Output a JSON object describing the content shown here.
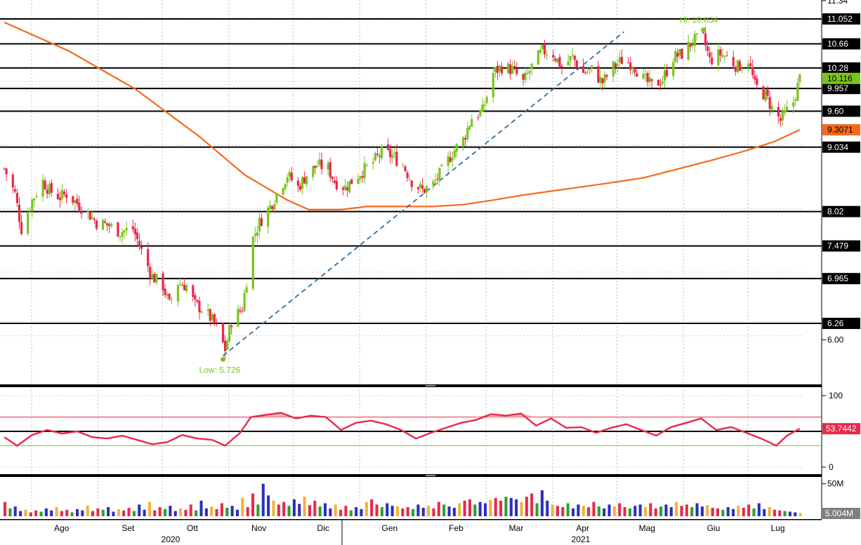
{
  "chart_data": [
    {
      "type": "candlestick",
      "panel": "price",
      "ylim": [
        5.3,
        11.35
      ],
      "y_ticks": [
        {
          "value": 6.0,
          "label": "6.00"
        },
        {
          "value": 11.34,
          "label": "11.34"
        }
      ],
      "horizontal_levels": [
        {
          "value": 11.052,
          "label": "11.052"
        },
        {
          "value": 10.66,
          "label": "10.66"
        },
        {
          "value": 10.28,
          "label": "10.28"
        },
        {
          "value": 9.957,
          "label": "9.957"
        },
        {
          "value": 9.6,
          "label": "9.60"
        },
        {
          "value": 9.034,
          "label": "9.034"
        },
        {
          "value": 8.02,
          "label": "8.02"
        },
        {
          "value": 7.479,
          "label": "7.479"
        },
        {
          "value": 6.965,
          "label": "6.965"
        },
        {
          "value": 6.26,
          "label": "6.26"
        }
      ],
      "last_price": {
        "value": 10.116,
        "label": "10.116",
        "color": "#7ac41e"
      },
      "moving_average_label": {
        "value": 9.3071,
        "label": "9.3071",
        "color": "#f26a1b"
      },
      "annotations": {
        "high": {
          "label": "Hi: 10.834",
          "value": 10.834
        },
        "low": {
          "label": "Low: 5.726",
          "value": 5.726
        }
      },
      "moving_average": {
        "color": "#f26a1b",
        "points": [
          [
            "2020-07-16",
            11.0
          ],
          [
            "2020-08-15",
            10.55
          ],
          [
            "2020-09-15",
            9.95
          ],
          [
            "2020-10-15",
            9.2
          ],
          [
            "2020-11-05",
            8.6
          ],
          [
            "2020-11-25",
            8.2
          ],
          [
            "2020-12-05",
            8.05
          ],
          [
            "2020-12-20",
            8.05
          ],
          [
            "2021-01-01",
            8.1
          ],
          [
            "2021-01-15",
            8.1
          ],
          [
            "2021-02-01",
            8.1
          ],
          [
            "2021-02-15",
            8.13
          ],
          [
            "2021-03-01",
            8.2
          ],
          [
            "2021-03-15",
            8.28
          ],
          [
            "2021-04-01",
            8.36
          ],
          [
            "2021-04-20",
            8.45
          ],
          [
            "2021-05-10",
            8.55
          ],
          [
            "2021-05-25",
            8.68
          ],
          [
            "2021-06-10",
            8.82
          ],
          [
            "2021-06-25",
            8.96
          ],
          [
            "2021-07-10",
            9.12
          ],
          [
            "2021-07-22",
            9.3071
          ]
        ]
      },
      "trendline": {
        "color": "#2b6e9e",
        "from": [
          "2020-10-26",
          5.75
        ],
        "to": [
          "2021-05-01",
          10.85
        ]
      },
      "series": [
        {
          "type": "ohlc",
          "close_path": [
            [
              "2020-07-16",
              8.7
            ],
            [
              "2020-07-21",
              8.3
            ],
            [
              "2020-07-24",
              7.75
            ],
            [
              "2020-07-29",
              8.2
            ],
            [
              "2020-08-03",
              8.5
            ],
            [
              "2020-08-06",
              8.35
            ],
            [
              "2020-08-11",
              8.25
            ],
            [
              "2020-08-14",
              8.3
            ],
            [
              "2020-08-19",
              8.15
            ],
            [
              "2020-08-24",
              8.0
            ],
            [
              "2020-08-28",
              7.85
            ],
            [
              "2020-09-03",
              7.8
            ],
            [
              "2020-09-08",
              7.7
            ],
            [
              "2020-09-14",
              7.75
            ],
            [
              "2020-09-18",
              7.4
            ],
            [
              "2020-09-23",
              7.0
            ],
            [
              "2020-09-28",
              6.85
            ],
            [
              "2020-10-01",
              6.55
            ],
            [
              "2020-10-05",
              6.9
            ],
            [
              "2020-10-09",
              6.85
            ],
            [
              "2020-10-13",
              6.55
            ],
            [
              "2020-10-16",
              6.5
            ],
            [
              "2020-10-20",
              6.35
            ],
            [
              "2020-10-23",
              6.2
            ],
            [
              "2020-10-27",
              5.85
            ],
            [
              "2020-10-30",
              6.3
            ],
            [
              "2020-11-04",
              6.5
            ],
            [
              "2020-11-09",
              7.6
            ],
            [
              "2020-11-12",
              7.85
            ],
            [
              "2020-11-17",
              8.1
            ],
            [
              "2020-11-20",
              8.3
            ],
            [
              "2020-11-25",
              8.6
            ],
            [
              "2020-11-30",
              8.4
            ],
            [
              "2020-12-04",
              8.6
            ],
            [
              "2020-12-09",
              8.75
            ],
            [
              "2020-12-14",
              8.7
            ],
            [
              "2020-12-17",
              8.5
            ],
            [
              "2020-12-22",
              8.4
            ],
            [
              "2020-12-28",
              8.6
            ],
            [
              "2021-01-04",
              8.8
            ],
            [
              "2021-01-08",
              8.95
            ],
            [
              "2021-01-13",
              8.9
            ],
            [
              "2021-01-18",
              8.75
            ],
            [
              "2021-01-22",
              8.5
            ],
            [
              "2021-01-27",
              8.35
            ],
            [
              "2021-02-01",
              8.45
            ],
            [
              "2021-02-05",
              8.65
            ],
            [
              "2021-02-10",
              8.95
            ],
            [
              "2021-02-15",
              9.15
            ],
            [
              "2021-02-19",
              9.5
            ],
            [
              "2021-02-24",
              9.6
            ],
            [
              "2021-03-01",
              10.2
            ],
            [
              "2021-03-05",
              10.3
            ],
            [
              "2021-03-10",
              10.25
            ],
            [
              "2021-03-15",
              10.05
            ],
            [
              "2021-03-19",
              10.3
            ],
            [
              "2021-03-24",
              10.55
            ],
            [
              "2021-03-29",
              10.5
            ],
            [
              "2021-04-02",
              10.3
            ],
            [
              "2021-04-07",
              10.45
            ],
            [
              "2021-04-12",
              10.2
            ],
            [
              "2021-04-16",
              10.25
            ],
            [
              "2021-04-21",
              10.05
            ],
            [
              "2021-04-26",
              10.3
            ],
            [
              "2021-04-30",
              10.4
            ],
            [
              "2021-05-05",
              10.35
            ],
            [
              "2021-05-10",
              10.1
            ],
            [
              "2021-05-14",
              10.0
            ],
            [
              "2021-05-19",
              10.1
            ],
            [
              "2021-05-24",
              10.45
            ],
            [
              "2021-05-28",
              10.5
            ],
            [
              "2021-06-02",
              10.7
            ],
            [
              "2021-06-07",
              10.75
            ],
            [
              "2021-06-10",
              10.4
            ],
            [
              "2021-06-15",
              10.5
            ],
            [
              "2021-06-18",
              10.45
            ],
            [
              "2021-06-23",
              10.3
            ],
            [
              "2021-06-28",
              10.4
            ],
            [
              "2021-07-01",
              10.0
            ],
            [
              "2021-07-06",
              9.85
            ],
            [
              "2021-07-09",
              9.65
            ],
            [
              "2021-07-13",
              9.45
            ],
            [
              "2021-07-15",
              9.55
            ],
            [
              "2021-07-19",
              9.75
            ],
            [
              "2021-07-22",
              10.116
            ]
          ]
        }
      ]
    },
    {
      "type": "line",
      "panel": "oscillator",
      "ylim": [
        0,
        100
      ],
      "y_ticks": [
        {
          "value": 100,
          "label": "100"
        },
        {
          "value": 0,
          "label": "0"
        }
      ],
      "bands": {
        "upper": 70,
        "lower": 30
      },
      "reference_level": 50,
      "last_value": {
        "value": 53.7442,
        "label": "53.7442"
      },
      "series": [
        {
          "color": "#e8294a",
          "points": [
            [
              "2020-07-16",
              42
            ],
            [
              "2020-07-22",
              30
            ],
            [
              "2020-07-29",
              45
            ],
            [
              "2020-08-05",
              52
            ],
            [
              "2020-08-12",
              47
            ],
            [
              "2020-08-19",
              50
            ],
            [
              "2020-08-26",
              42
            ],
            [
              "2020-09-02",
              40
            ],
            [
              "2020-09-09",
              44
            ],
            [
              "2020-09-16",
              38
            ],
            [
              "2020-09-23",
              32
            ],
            [
              "2020-09-30",
              35
            ],
            [
              "2020-10-07",
              45
            ],
            [
              "2020-10-14",
              40
            ],
            [
              "2020-10-21",
              38
            ],
            [
              "2020-10-27",
              30
            ],
            [
              "2020-11-03",
              48
            ],
            [
              "2020-11-08",
              70
            ],
            [
              "2020-11-15",
              73
            ],
            [
              "2020-11-22",
              76
            ],
            [
              "2020-11-29",
              68
            ],
            [
              "2020-12-06",
              72
            ],
            [
              "2020-12-13",
              70
            ],
            [
              "2020-12-20",
              52
            ],
            [
              "2020-12-27",
              62
            ],
            [
              "2021-01-03",
              65
            ],
            [
              "2021-01-10",
              60
            ],
            [
              "2021-01-17",
              52
            ],
            [
              "2021-01-24",
              40
            ],
            [
              "2021-01-31",
              48
            ],
            [
              "2021-02-07",
              55
            ],
            [
              "2021-02-14",
              62
            ],
            [
              "2021-02-21",
              66
            ],
            [
              "2021-02-28",
              74
            ],
            [
              "2021-03-07",
              72
            ],
            [
              "2021-03-14",
              75
            ],
            [
              "2021-03-21",
              58
            ],
            [
              "2021-03-28",
              68
            ],
            [
              "2021-04-04",
              55
            ],
            [
              "2021-04-11",
              56
            ],
            [
              "2021-04-18",
              48
            ],
            [
              "2021-04-25",
              55
            ],
            [
              "2021-05-02",
              60
            ],
            [
              "2021-05-09",
              52
            ],
            [
              "2021-05-16",
              44
            ],
            [
              "2021-05-23",
              56
            ],
            [
              "2021-05-30",
              62
            ],
            [
              "2021-06-06",
              68
            ],
            [
              "2021-06-13",
              52
            ],
            [
              "2021-06-20",
              56
            ],
            [
              "2021-06-27",
              48
            ],
            [
              "2021-07-04",
              40
            ],
            [
              "2021-07-11",
              30
            ],
            [
              "2021-07-16",
              44
            ],
            [
              "2021-07-22",
              53.7442
            ]
          ]
        }
      ]
    },
    {
      "type": "bar",
      "panel": "volume",
      "ylim": [
        0,
        55
      ],
      "unit": "M",
      "y_ticks": [
        {
          "value": 50,
          "label": "50M"
        }
      ],
      "last_value": {
        "value": 5.004,
        "label": "5.004M"
      },
      "bar_colors": [
        "#e8294a",
        "#f2b234",
        "#2a2fbf",
        "#2aa12a"
      ],
      "values": [
        22,
        12,
        15,
        8,
        10,
        6,
        9,
        7,
        12,
        9,
        14,
        8,
        10,
        6,
        11,
        9,
        16,
        8,
        12,
        10,
        14,
        7,
        11,
        9,
        13,
        8,
        18,
        10,
        22,
        9,
        14,
        11,
        16,
        8,
        12,
        10,
        18,
        9,
        24,
        12,
        15,
        11,
        20,
        13,
        16,
        10,
        28,
        14,
        35,
        18,
        50,
        32,
        24,
        18,
        22,
        16,
        26,
        19,
        30,
        17,
        24,
        15,
        20,
        12,
        18,
        10,
        16,
        9,
        14,
        11,
        22,
        26,
        18,
        14,
        20,
        16,
        15,
        12,
        14,
        11,
        18,
        13,
        16,
        12,
        22,
        18,
        15,
        13,
        20,
        24,
        26,
        18,
        22,
        20,
        25,
        28,
        24,
        30,
        28,
        26,
        22,
        30,
        35,
        20,
        40,
        24,
        18,
        16,
        14,
        20,
        12,
        18,
        16,
        14,
        22,
        15,
        12,
        18,
        15,
        20,
        14,
        12,
        16,
        18,
        14,
        20,
        12,
        15,
        18,
        14,
        22,
        16,
        18,
        14,
        20,
        15,
        17,
        13,
        12,
        10,
        14,
        11,
        16,
        13,
        18,
        12,
        20,
        11,
        14,
        10,
        9,
        8,
        7,
        6,
        5
      ]
    }
  ],
  "x_axis": {
    "months": [
      "Ago",
      "Set",
      "Ott",
      "Nov",
      "Dic",
      "Gen",
      "Feb",
      "Mar",
      "Apr",
      "Mag",
      "Giu",
      "Lug"
    ],
    "years": [
      "2020",
      "2021"
    ]
  }
}
